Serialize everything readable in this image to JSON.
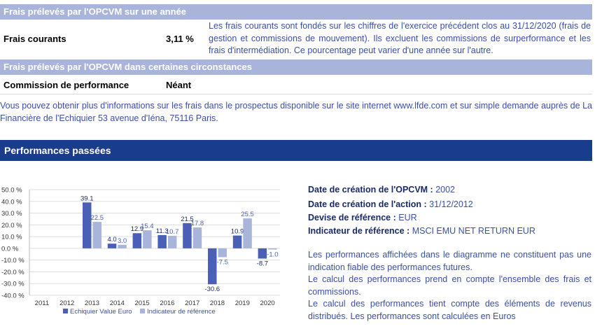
{
  "fees": {
    "annual_header": "Frais prélevés par l'OPCVM sur une année",
    "current_label": "Frais courants",
    "current_value": "3,11 %",
    "current_desc": "Les frais courants sont fondés sur les chiffres de l'exercice précédent clos au 31/12/2020 (frais de gestion et commissions de mouvement). Ils excluent les commissions de surperformance et les frais d'intermédiation. Ce pourcentage peut varier d'une année sur l'autre.",
    "specific_header": "Frais prélevés par l'OPCVM dans certaines circonstances",
    "perf_label": "Commission de performance",
    "perf_value": "Néant",
    "info_text": "Vous pouvez obtenir plus d'informations sur les frais dans le prospectus disponible sur le site internet www.lfde.com et sur simple demande auprès de La Financière de l'Echiquier 53 avenue d'Iéna, 75116 Paris."
  },
  "performance": {
    "header": "Performances passées",
    "meta": [
      {
        "label": "Date de création de l'OPCVM :",
        "value": "2002"
      },
      {
        "label": "Date de création de l'action :",
        "value": "31/12/2012"
      },
      {
        "label": "Devise de référence :",
        "value": "EUR"
      },
      {
        "label": "Indicateur de référence :",
        "value": "MSCI EMU NET RETURN EUR"
      }
    ],
    "notes": [
      "Les performances affichées dans le diagramme ne constituent pas une indication fiable des performances futures.",
      "Le calcul des performances prend en compte l'ensemble des frais et commissions.",
      "Le calcul des performances tient compte des éléments de revenus distribués. Les performances sont calculées en Euros"
    ]
  },
  "colors": {
    "fund": "#4a5fb5",
    "benchmark": "#a9b4da",
    "header_dark": "#1a3c8c"
  },
  "chart_data": {
    "type": "bar",
    "categories": [
      "2011",
      "2012",
      "2013",
      "2014",
      "2015",
      "2016",
      "2017",
      "2018",
      "2019",
      "2020"
    ],
    "series": [
      {
        "name": "Echiquier Value Euro",
        "values": [
          null,
          null,
          39.1,
          4.0,
          12.9,
          11.3,
          21.5,
          -30.6,
          10.9,
          -8.7
        ]
      },
      {
        "name": "Indicateur de référence",
        "values": [
          null,
          null,
          22.5,
          3.0,
          15.4,
          10.7,
          17.8,
          -7.5,
          25.5,
          -1.0
        ]
      }
    ],
    "ytick_labels": [
      "50.0 %",
      "40.0 %",
      "30.0 %",
      "20.0 %",
      "10.0 %",
      "0.0 %",
      "-10.0 %",
      "-20.0 %",
      "-30.0 %",
      "-40.0 %"
    ],
    "ylim": [
      -40,
      50
    ],
    "legend_position": "bottom",
    "title": "",
    "xlabel": "",
    "ylabel": ""
  }
}
